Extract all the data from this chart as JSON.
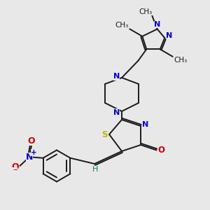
{
  "bg_color": "#e8e8e8",
  "bond_color": "#1a1a1a",
  "N_color": "#0000cc",
  "S_color": "#b8b800",
  "O_color": "#cc0000",
  "H_color": "#008080",
  "fig_w": 3.0,
  "fig_h": 3.0,
  "dpi": 100,
  "xlim": [
    0,
    10
  ],
  "ylim": [
    0,
    10
  ],
  "lw": 1.4
}
